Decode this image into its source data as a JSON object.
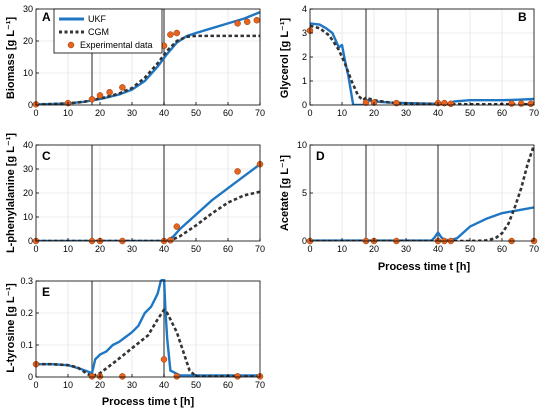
{
  "colors": {
    "ukf": "#1f77c4",
    "cgm": "#333333",
    "exp_fill": "#e8641e",
    "exp_edge": "#8a3a10",
    "vline": "#555555",
    "grid": "#dddddd"
  },
  "legend": {
    "entries": [
      "UKF",
      "CGM",
      "Experimental data"
    ]
  },
  "chart_data": [
    {
      "panel": "A",
      "type": "line",
      "ylabel": "Biomass [g L⁻¹]",
      "xlabel": "",
      "xlim": [
        0,
        70
      ],
      "ylim": [
        0,
        30
      ],
      "xticks": [
        0,
        10,
        20,
        30,
        40,
        50,
        60,
        70
      ],
      "yticks": [
        0,
        10,
        20,
        30
      ],
      "vlines": [
        17.5,
        40
      ],
      "series": [
        {
          "name": "UKF",
          "style": "solid",
          "x": [
            0,
            5,
            10,
            15,
            18,
            22,
            26,
            30,
            34,
            38,
            41,
            44,
            47,
            50,
            55,
            60,
            65,
            70
          ],
          "y": [
            0.2,
            0.3,
            0.5,
            1,
            1.5,
            2.3,
            3.3,
            4.8,
            7.5,
            12,
            16,
            19.5,
            21.5,
            22.5,
            24,
            25.5,
            27,
            29
          ]
        },
        {
          "name": "CGM",
          "style": "dashed",
          "x": [
            0,
            5,
            10,
            15,
            18,
            22,
            26,
            30,
            34,
            38,
            41,
            44,
            47,
            50,
            55,
            60,
            65,
            70
          ],
          "y": [
            0.2,
            0.3,
            0.5,
            1,
            1.6,
            2.5,
            3.6,
            5.3,
            8.5,
            13,
            17,
            20,
            21.3,
            21.6,
            21.6,
            21.6,
            21.6,
            21.6
          ]
        },
        {
          "name": "Experimental data",
          "style": "markers",
          "x": [
            0,
            10,
            17.5,
            20,
            23,
            27,
            40,
            42,
            44,
            63,
            66,
            69
          ],
          "y": [
            0.2,
            0.6,
            1.8,
            3,
            4,
            5.5,
            18.5,
            22,
            22.5,
            25.5,
            26,
            26.5
          ]
        }
      ]
    },
    {
      "panel": "B",
      "type": "line",
      "ylabel": "Glycerol [g L⁻¹]",
      "xlabel": "",
      "xlim": [
        0,
        70
      ],
      "ylim": [
        0,
        4
      ],
      "xticks": [
        0,
        10,
        20,
        30,
        40,
        50,
        60,
        70
      ],
      "yticks": [
        0,
        1,
        2,
        3,
        4
      ],
      "vlines": [
        17.5,
        40
      ],
      "series": [
        {
          "name": "UKF",
          "style": "solid",
          "x": [
            0,
            3,
            5,
            7,
            9,
            10,
            11,
            12,
            13,
            13.5,
            14,
            17.5,
            17.6,
            20,
            25,
            30,
            40,
            44,
            45,
            50,
            60,
            65,
            70
          ],
          "y": [
            3.4,
            3.35,
            3.2,
            3.0,
            2.4,
            2.5,
            1.8,
            1.2,
            0.4,
            0.0,
            0.0,
            0.0,
            0.2,
            0.15,
            0.1,
            0.08,
            0.05,
            0.05,
            0.15,
            0.2,
            0.2,
            0.22,
            0.25
          ]
        },
        {
          "name": "CGM",
          "style": "dashed",
          "x": [
            0,
            3,
            6,
            9,
            11,
            13,
            15,
            16.5,
            17.5,
            20,
            25,
            30,
            40,
            50,
            60,
            70
          ],
          "y": [
            3.3,
            3.2,
            2.9,
            2.3,
            1.7,
            1.0,
            0.4,
            0.2,
            0.3,
            0.2,
            0.1,
            0.06,
            0.04,
            0.03,
            0.03,
            0.03
          ]
        },
        {
          "name": "Experimental data",
          "style": "markers",
          "x": [
            0,
            17.5,
            20,
            27,
            40,
            42,
            44,
            63,
            66,
            69
          ],
          "y": [
            3.1,
            0.1,
            0.1,
            0.08,
            0.08,
            0.08,
            0.05,
            0.06,
            0.06,
            0.05
          ]
        }
      ]
    },
    {
      "panel": "C",
      "type": "line",
      "ylabel": "L-phenylalanine [g L⁻¹]",
      "xlabel": "",
      "xlim": [
        0,
        70
      ],
      "ylim": [
        0,
        40
      ],
      "xticks": [
        0,
        10,
        20,
        30,
        40,
        50,
        60,
        70
      ],
      "yticks": [
        0,
        10,
        20,
        30,
        40
      ],
      "vlines": [
        17.5,
        40
      ],
      "series": [
        {
          "name": "UKF",
          "style": "solid",
          "x": [
            0,
            10,
            20,
            30,
            40,
            41,
            43,
            45,
            50,
            55,
            60,
            65,
            70
          ],
          "y": [
            0,
            0,
            0,
            0,
            0,
            0.2,
            2,
            5,
            11,
            17,
            22,
            27,
            32
          ]
        },
        {
          "name": "CGM",
          "style": "dashed",
          "x": [
            0,
            10,
            20,
            30,
            40,
            42,
            45,
            50,
            55,
            60,
            65,
            70
          ],
          "y": [
            0,
            0,
            0,
            0,
            0,
            0.2,
            2,
            6.5,
            11.5,
            16,
            19,
            20.5
          ]
        },
        {
          "name": "Experimental data",
          "style": "markers",
          "x": [
            0,
            17.5,
            20,
            27,
            40,
            42,
            44,
            63,
            70
          ],
          "y": [
            0,
            0,
            0,
            0,
            0,
            0.3,
            6,
            29,
            32
          ]
        }
      ]
    },
    {
      "panel": "D",
      "type": "line",
      "ylabel": "Acetate [g L⁻¹]",
      "xlabel": "Process time t [h]",
      "xlim": [
        0,
        70
      ],
      "ylim": [
        0,
        10
      ],
      "xticks": [
        0,
        10,
        20,
        30,
        40,
        50,
        60,
        70
      ],
      "yticks": [
        0,
        5,
        10
      ],
      "vlines": [
        17.5,
        40
      ],
      "series": [
        {
          "name": "UKF",
          "style": "solid",
          "x": [
            0,
            10,
            20,
            30,
            38,
            39,
            40,
            41,
            42,
            44,
            46,
            48,
            50,
            55,
            60,
            65,
            70
          ],
          "y": [
            0.05,
            0.05,
            0.05,
            0.05,
            0.05,
            0.4,
            0.9,
            0.4,
            0.1,
            0.1,
            0.3,
            0.9,
            1.5,
            2.3,
            2.9,
            3.2,
            3.5
          ]
        },
        {
          "name": "CGM",
          "style": "dashed",
          "x": [
            0,
            10,
            20,
            30,
            40,
            50,
            55,
            58,
            60,
            62,
            64,
            66,
            68,
            70
          ],
          "y": [
            0,
            0,
            0,
            0,
            0,
            0,
            0.05,
            0.3,
            0.8,
            1.8,
            3.5,
            5.5,
            8,
            10
          ]
        },
        {
          "name": "Experimental data",
          "style": "markers",
          "x": [
            0,
            17.5,
            20,
            27,
            40,
            42,
            44,
            63,
            70
          ],
          "y": [
            0,
            0,
            0,
            0,
            0,
            0,
            0,
            0,
            0
          ]
        }
      ]
    },
    {
      "panel": "E",
      "type": "line",
      "ylabel": "L-tyrosine [g L⁻¹]",
      "xlabel": "Process time t [h]",
      "xlim": [
        0,
        70
      ],
      "ylim": [
        0,
        0.3
      ],
      "xticks": [
        0,
        10,
        20,
        30,
        40,
        50,
        60,
        70
      ],
      "yticks": [
        0,
        0.1,
        0.2,
        0.3
      ],
      "vlines": [
        17.5,
        40
      ],
      "series": [
        {
          "name": "UKF",
          "style": "solid",
          "x": [
            0,
            5,
            10,
            14,
            17.5,
            18.5,
            20,
            22,
            24,
            26,
            28,
            30,
            32,
            34,
            36,
            38,
            39,
            40,
            40.5,
            41,
            42,
            45,
            50,
            60,
            70
          ],
          "y": [
            0.04,
            0.04,
            0.037,
            0.025,
            0.012,
            0.055,
            0.07,
            0.08,
            0.1,
            0.11,
            0.125,
            0.14,
            0.16,
            0.2,
            0.22,
            0.26,
            0.3,
            0.31,
            0.2,
            0.12,
            0.02,
            0.005,
            0.005,
            0.005,
            0.005
          ]
        },
        {
          "name": "CGM",
          "style": "dashed",
          "x": [
            0,
            5,
            10,
            13,
            16,
            17.5,
            20,
            25,
            30,
            35,
            38,
            40,
            41,
            42,
            44,
            46,
            48,
            50,
            60,
            70
          ],
          "y": [
            0.04,
            0.04,
            0.037,
            0.03,
            0.01,
            0.002,
            0.012,
            0.05,
            0.09,
            0.13,
            0.18,
            0.21,
            0.2,
            0.18,
            0.14,
            0.08,
            0.02,
            0.002,
            0.002,
            0.002
          ]
        },
        {
          "name": "Experimental data",
          "style": "markers",
          "x": [
            0,
            17.5,
            20,
            27,
            40,
            44,
            63,
            70
          ],
          "y": [
            0.04,
            0.002,
            0.002,
            0.002,
            0.055,
            0.002,
            0.002,
            0.002
          ]
        }
      ]
    }
  ]
}
